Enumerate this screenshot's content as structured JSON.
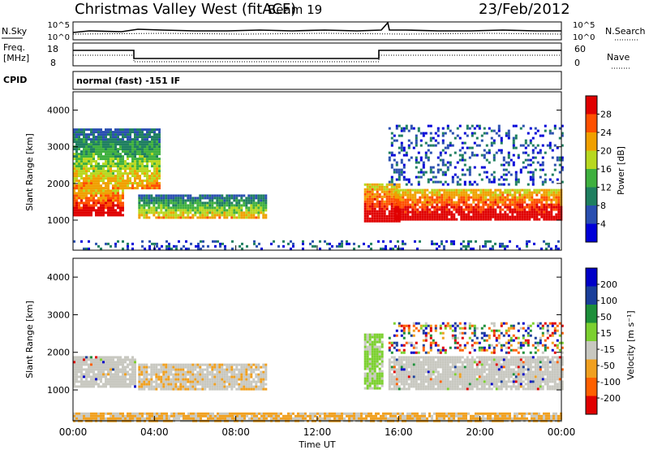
{
  "header": {
    "site": "Christmas Valley West (fitACF)",
    "beam": "Beam 19",
    "date": "23/Feb/2012"
  },
  "noise_panel": {
    "left_label": "N.Sky",
    "right_label": "N.Search",
    "left_ticks": [
      "10^5",
      "10^0"
    ],
    "right_ticks": [
      "10^5",
      "10^0"
    ]
  },
  "freq_panel": {
    "left_label_line1": "Freq.",
    "left_label_line2": "[MHz]",
    "right_label": "Nave",
    "left_ticks": [
      "18",
      "8"
    ],
    "right_ticks": [
      "60",
      "0"
    ]
  },
  "cpid_panel": {
    "label": "CPID",
    "text": "normal (fast) -151 IF"
  },
  "colors": {
    "power_scale": [
      "#0000d8",
      "#2a4fb0",
      "#1f7f60",
      "#3fb03f",
      "#b8d820",
      "#f0a000",
      "#ff5000",
      "#e00000"
    ],
    "velocity_scale": [
      "#0000c8",
      "#1a3f9a",
      "#1d8f3a",
      "#7cd030",
      "#c8c8c0",
      "#f0a020",
      "#ff6000",
      "#e00000"
    ]
  },
  "chart_data": [
    {
      "type": "heatmap",
      "name": "power",
      "xlabel": "",
      "ylabel": "Slant Range [km]",
      "x_range_hours": [
        0,
        24
      ],
      "ylim": [
        180,
        4500
      ],
      "yticks": [
        "1000",
        "2000",
        "3000",
        "4000"
      ],
      "colorbar": {
        "label": "Power [dB]",
        "range": [
          0,
          32
        ],
        "ticks": [
          "4",
          "8",
          "12",
          "16",
          "20",
          "24",
          "28"
        ]
      },
      "echo_regions": [
        {
          "t_start": 0.0,
          "t_end": 2.5,
          "r_low": 1150,
          "r_high": 1900,
          "level": "high"
        },
        {
          "t_start": 3.2,
          "t_end": 9.5,
          "r_low": 1050,
          "r_high": 1700,
          "level": "medium"
        },
        {
          "t_start": 14.3,
          "t_end": 16.0,
          "r_low": 1000,
          "r_high": 2000,
          "level": "high"
        },
        {
          "t_start": 15.8,
          "t_end": 24.0,
          "r_low": 1000,
          "r_high": 1850,
          "level": "high"
        },
        {
          "t_start": 15.5,
          "t_end": 24.0,
          "r_low": 2000,
          "r_high": 3600,
          "level": "low"
        },
        {
          "t_start": 0.0,
          "t_end": 4.2,
          "r_low": 1900,
          "r_high": 3500,
          "level": "medium"
        },
        {
          "t_start": 0.0,
          "t_end": 24.0,
          "r_low": 200,
          "r_high": 450,
          "level": "low"
        }
      ]
    },
    {
      "type": "heatmap",
      "name": "velocity",
      "xlabel": "Time UT",
      "ylabel": "Slant Range [km]",
      "x_range_hours": [
        0,
        24
      ],
      "xticks": [
        "00:00",
        "04:00",
        "08:00",
        "12:00",
        "16:00",
        "20:00",
        "00:00"
      ],
      "ylim": [
        180,
        4500
      ],
      "yticks": [
        "1000",
        "2000",
        "3000",
        "4000"
      ],
      "colorbar": {
        "label": "Velocity [m s⁻¹]",
        "range": [
          -250,
          250
        ],
        "ticks": [
          "200",
          "100",
          "50",
          "15",
          "-15",
          "-50",
          "-100",
          "-200"
        ]
      },
      "echo_regions": [
        {
          "t_start": 0.0,
          "t_end": 3.0,
          "r_low": 1100,
          "r_high": 1900,
          "level": "ground"
        },
        {
          "t_start": 3.2,
          "t_end": 9.5,
          "r_low": 1050,
          "r_high": 1700,
          "level": "ground_neg"
        },
        {
          "t_start": 14.3,
          "t_end": 15.2,
          "r_low": 1050,
          "r_high": 2500,
          "level": "pos"
        },
        {
          "t_start": 15.5,
          "t_end": 24.0,
          "r_low": 1000,
          "r_high": 1900,
          "level": "ground"
        },
        {
          "t_start": 15.5,
          "t_end": 24.0,
          "r_low": 2000,
          "r_high": 2800,
          "level": "mixed"
        },
        {
          "t_start": 0.0,
          "t_end": 24.0,
          "r_low": 200,
          "r_high": 400,
          "level": "neg"
        }
      ]
    }
  ]
}
